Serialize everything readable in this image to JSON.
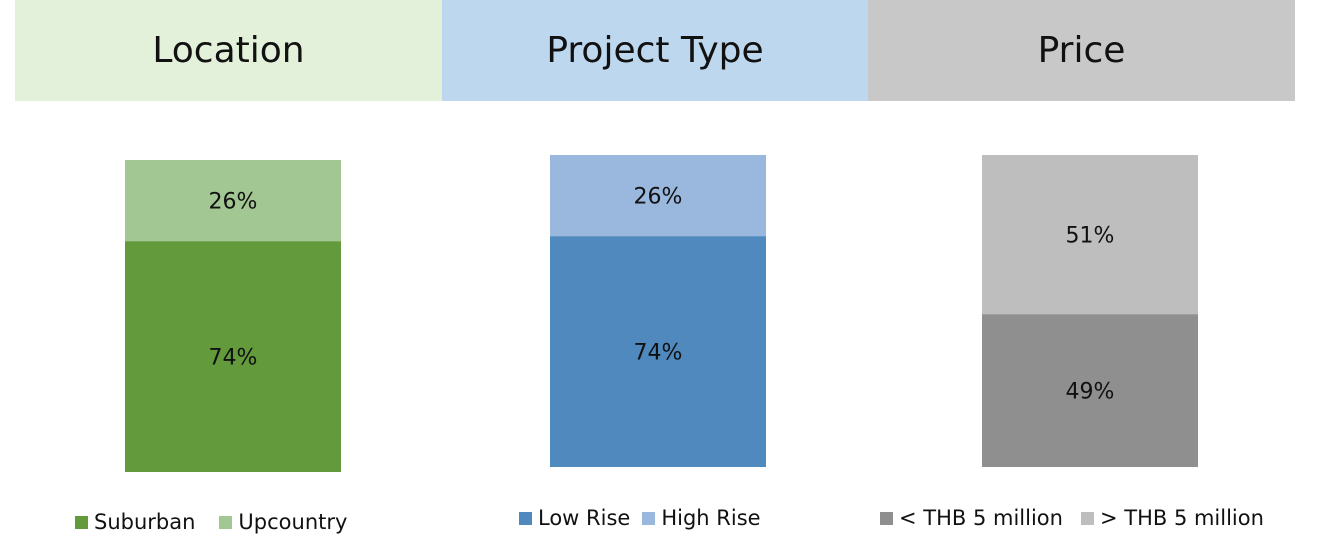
{
  "chart_data": [
    {
      "type": "bar",
      "stacked": true,
      "title": "Location",
      "title_bg": "#E3F0DA",
      "ylim": [
        0,
        100
      ],
      "series": [
        {
          "name": "Suburban",
          "value": 74,
          "label": "74%",
          "color": "#629A3C"
        },
        {
          "name": "Upcountry",
          "value": 26,
          "label": "26%",
          "color": "#A3C793"
        }
      ]
    },
    {
      "type": "bar",
      "stacked": true,
      "title": "Project Type",
      "title_bg": "#BDD7EE",
      "ylim": [
        0,
        100
      ],
      "series": [
        {
          "name": "Low Rise",
          "value": 74,
          "label": "74%",
          "color": "#4F89BD"
        },
        {
          "name": "High Rise",
          "value": 26,
          "label": "26%",
          "color": "#9AB8DE"
        }
      ]
    },
    {
      "type": "bar",
      "stacked": true,
      "title": "Price",
      "title_bg": "#C8C8C8",
      "ylim": [
        0,
        100
      ],
      "series": [
        {
          "name": "< THB 5 million",
          "value": 49,
          "label": "49%",
          "color": "#8F8F8F"
        },
        {
          "name": "> THB 5 million",
          "value": 51,
          "label": "51%",
          "color": "#BEBEBE"
        }
      ]
    }
  ]
}
